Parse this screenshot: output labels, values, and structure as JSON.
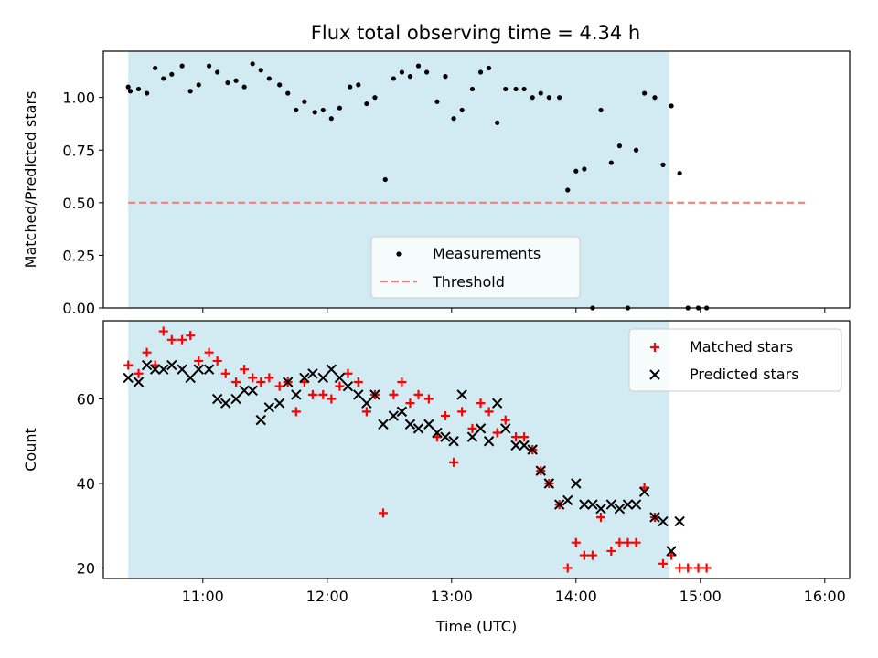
{
  "title": "Flux total observing time = 4.34 h",
  "colors": {
    "shade": "#add8e6",
    "threshold": "#f08080",
    "measurements": "#000000",
    "matched": "#ff0000",
    "predicted": "#000000"
  },
  "chart_data": [
    {
      "type": "scatter",
      "panel": "top",
      "ylabel": "Matched/Predicted stars",
      "xlim": [
        "10:12",
        "16:12"
      ],
      "ylim": [
        0,
        1.22
      ],
      "yticks": [
        0.0,
        0.25,
        0.5,
        0.75,
        1.0
      ],
      "ytick_labels": [
        "0.00",
        "0.25",
        "0.50",
        "0.75",
        "1.00"
      ],
      "xticks": [
        "11:00",
        "12:00",
        "13:00",
        "14:00",
        "15:00",
        "16:00"
      ],
      "shaded_span": [
        "10:24",
        "14:45"
      ],
      "threshold": {
        "name": "Threshold",
        "value": 0.5,
        "x_range": [
          "10:24",
          "15:52"
        ],
        "style": "dashed"
      },
      "legend": {
        "position": "lower-center",
        "entries": [
          "Measurements",
          "Threshold"
        ]
      },
      "series": [
        {
          "name": "Measurements",
          "marker": "dot",
          "points": [
            [
              "10:24",
              1.05
            ],
            [
              "10:25",
              1.03
            ],
            [
              "10:29",
              1.04
            ],
            [
              "10:33",
              1.02
            ],
            [
              "10:37",
              1.14
            ],
            [
              "10:41",
              1.09
            ],
            [
              "10:45",
              1.11
            ],
            [
              "10:50",
              1.15
            ],
            [
              "10:54",
              1.03
            ],
            [
              "10:58",
              1.06
            ],
            [
              "11:03",
              1.15
            ],
            [
              "11:07",
              1.12
            ],
            [
              "11:12",
              1.07
            ],
            [
              "11:16",
              1.08
            ],
            [
              "11:20",
              1.05
            ],
            [
              "11:24",
              1.16
            ],
            [
              "11:28",
              1.13
            ],
            [
              "11:32",
              1.09
            ],
            [
              "11:37",
              1.06
            ],
            [
              "11:41",
              1.02
            ],
            [
              "11:45",
              0.94
            ],
            [
              "11:49",
              0.98
            ],
            [
              "11:54",
              0.93
            ],
            [
              "11:58",
              0.94
            ],
            [
              "12:02",
              0.9
            ],
            [
              "12:06",
              0.95
            ],
            [
              "12:11",
              1.05
            ],
            [
              "12:15",
              1.06
            ],
            [
              "12:19",
              0.97
            ],
            [
              "12:23",
              1.0
            ],
            [
              "12:28",
              0.61
            ],
            [
              "12:32",
              1.09
            ],
            [
              "12:36",
              1.12
            ],
            [
              "12:40",
              1.1
            ],
            [
              "12:44",
              1.15
            ],
            [
              "12:48",
              1.12
            ],
            [
              "12:53",
              0.98
            ],
            [
              "12:57",
              1.1
            ],
            [
              "13:01",
              0.9
            ],
            [
              "13:05",
              0.94
            ],
            [
              "13:10",
              1.04
            ],
            [
              "13:14",
              1.12
            ],
            [
              "13:18",
              1.14
            ],
            [
              "13:22",
              0.88
            ],
            [
              "13:26",
              1.04
            ],
            [
              "13:31",
              1.04
            ],
            [
              "13:35",
              1.04
            ],
            [
              "13:39",
              1.0
            ],
            [
              "13:43",
              1.02
            ],
            [
              "13:47",
              1.0
            ],
            [
              "13:52",
              1.0
            ],
            [
              "13:56",
              0.56
            ],
            [
              "14:00",
              0.65
            ],
            [
              "14:04",
              0.66
            ],
            [
              "14:08",
              0.0
            ],
            [
              "14:12",
              0.94
            ],
            [
              "14:17",
              0.69
            ],
            [
              "14:21",
              0.77
            ],
            [
              "14:25",
              0.0
            ],
            [
              "14:29",
              0.75
            ],
            [
              "14:33",
              1.02
            ],
            [
              "14:38",
              1.0
            ],
            [
              "14:42",
              0.68
            ],
            [
              "14:46",
              0.96
            ],
            [
              "14:50",
              0.64
            ],
            [
              "14:54",
              0.0
            ],
            [
              "14:59",
              0.0
            ],
            [
              "15:03",
              0.0
            ]
          ]
        }
      ]
    },
    {
      "type": "scatter",
      "panel": "bottom",
      "xlabel": "Time (UTC)",
      "ylabel": "Count",
      "xlim": [
        "10:12",
        "16:12"
      ],
      "ylim": [
        17.5,
        78.5
      ],
      "yticks": [
        20,
        40,
        60
      ],
      "xticks": [
        "11:00",
        "12:00",
        "13:00",
        "14:00",
        "15:00",
        "16:00"
      ],
      "shaded_span": [
        "10:24",
        "14:45"
      ],
      "legend": {
        "position": "top-right",
        "entries": [
          "Matched stars",
          "Predicted stars"
        ]
      },
      "series": [
        {
          "name": "Matched stars",
          "marker": "plus",
          "points": [
            [
              "10:24",
              68
            ],
            [
              "10:29",
              66
            ],
            [
              "10:33",
              71
            ],
            [
              "10:37",
              68
            ],
            [
              "10:41",
              76
            ],
            [
              "10:45",
              74
            ],
            [
              "10:50",
              74
            ],
            [
              "10:54",
              75
            ],
            [
              "10:58",
              69
            ],
            [
              "11:03",
              71
            ],
            [
              "11:07",
              69
            ],
            [
              "11:11",
              66
            ],
            [
              "11:16",
              64
            ],
            [
              "11:20",
              67
            ],
            [
              "11:24",
              65
            ],
            [
              "11:28",
              64
            ],
            [
              "11:32",
              65
            ],
            [
              "11:37",
              63
            ],
            [
              "11:41",
              64
            ],
            [
              "11:45",
              57
            ],
            [
              "11:49",
              64
            ],
            [
              "11:53",
              61
            ],
            [
              "11:58",
              61
            ],
            [
              "12:02",
              60
            ],
            [
              "12:06",
              63
            ],
            [
              "12:10",
              66
            ],
            [
              "12:15",
              64
            ],
            [
              "12:19",
              57
            ],
            [
              "12:23",
              61
            ],
            [
              "12:27",
              33
            ],
            [
              "12:32",
              61
            ],
            [
              "12:36",
              64
            ],
            [
              "12:40",
              59
            ],
            [
              "12:44",
              61
            ],
            [
              "12:49",
              60
            ],
            [
              "12:53",
              51
            ],
            [
              "12:57",
              56
            ],
            [
              "13:01",
              45
            ],
            [
              "13:05",
              57
            ],
            [
              "13:10",
              53
            ],
            [
              "13:14",
              59
            ],
            [
              "13:18",
              57
            ],
            [
              "13:22",
              52
            ],
            [
              "13:26",
              55
            ],
            [
              "13:31",
              51
            ],
            [
              "13:35",
              51
            ],
            [
              "13:39",
              48
            ],
            [
              "13:43",
              43
            ],
            [
              "13:47",
              40
            ],
            [
              "13:52",
              35
            ],
            [
              "13:56",
              20
            ],
            [
              "14:00",
              26
            ],
            [
              "14:04",
              23
            ],
            [
              "14:08",
              23
            ],
            [
              "14:12",
              32
            ],
            [
              "14:17",
              24
            ],
            [
              "14:21",
              26
            ],
            [
              "14:25",
              26
            ],
            [
              "14:29",
              26
            ],
            [
              "14:33",
              39
            ],
            [
              "14:38",
              32
            ],
            [
              "14:42",
              21
            ],
            [
              "14:46",
              23
            ],
            [
              "14:50",
              20
            ],
            [
              "14:54",
              20
            ],
            [
              "14:59",
              20
            ],
            [
              "15:03",
              20
            ]
          ]
        },
        {
          "name": "Predicted stars",
          "marker": "x",
          "points": [
            [
              "10:24",
              65
            ],
            [
              "10:29",
              64
            ],
            [
              "10:33",
              68
            ],
            [
              "10:37",
              67
            ],
            [
              "10:41",
              67
            ],
            [
              "10:45",
              68
            ],
            [
              "10:50",
              67
            ],
            [
              "10:54",
              65
            ],
            [
              "10:58",
              67
            ],
            [
              "11:03",
              67
            ],
            [
              "11:07",
              60
            ],
            [
              "11:11",
              59
            ],
            [
              "11:16",
              60
            ],
            [
              "11:20",
              62
            ],
            [
              "11:24",
              62
            ],
            [
              "11:28",
              55
            ],
            [
              "11:32",
              58
            ],
            [
              "11:37",
              59
            ],
            [
              "11:41",
              64
            ],
            [
              "11:45",
              61
            ],
            [
              "11:49",
              65
            ],
            [
              "11:53",
              66
            ],
            [
              "11:58",
              65
            ],
            [
              "12:02",
              67
            ],
            [
              "12:06",
              65
            ],
            [
              "12:10",
              63
            ],
            [
              "12:15",
              61
            ],
            [
              "12:19",
              59
            ],
            [
              "12:23",
              61
            ],
            [
              "12:27",
              54
            ],
            [
              "12:32",
              56
            ],
            [
              "12:36",
              57
            ],
            [
              "12:40",
              54
            ],
            [
              "12:44",
              53
            ],
            [
              "12:49",
              54
            ],
            [
              "12:53",
              52
            ],
            [
              "12:57",
              51
            ],
            [
              "13:01",
              50
            ],
            [
              "13:05",
              61
            ],
            [
              "13:10",
              51
            ],
            [
              "13:14",
              53
            ],
            [
              "13:18",
              50
            ],
            [
              "13:22",
              59
            ],
            [
              "13:26",
              53
            ],
            [
              "13:31",
              49
            ],
            [
              "13:35",
              49
            ],
            [
              "13:39",
              48
            ],
            [
              "13:43",
              43
            ],
            [
              "13:47",
              40
            ],
            [
              "13:52",
              35
            ],
            [
              "13:56",
              36
            ],
            [
              "14:00",
              40
            ],
            [
              "14:04",
              35
            ],
            [
              "14:08",
              35
            ],
            [
              "14:12",
              34
            ],
            [
              "14:17",
              35
            ],
            [
              "14:21",
              34
            ],
            [
              "14:25",
              35
            ],
            [
              "14:29",
              35
            ],
            [
              "14:33",
              38
            ],
            [
              "14:38",
              32
            ],
            [
              "14:42",
              31
            ],
            [
              "14:46",
              24
            ],
            [
              "14:50",
              31
            ]
          ]
        }
      ]
    }
  ]
}
